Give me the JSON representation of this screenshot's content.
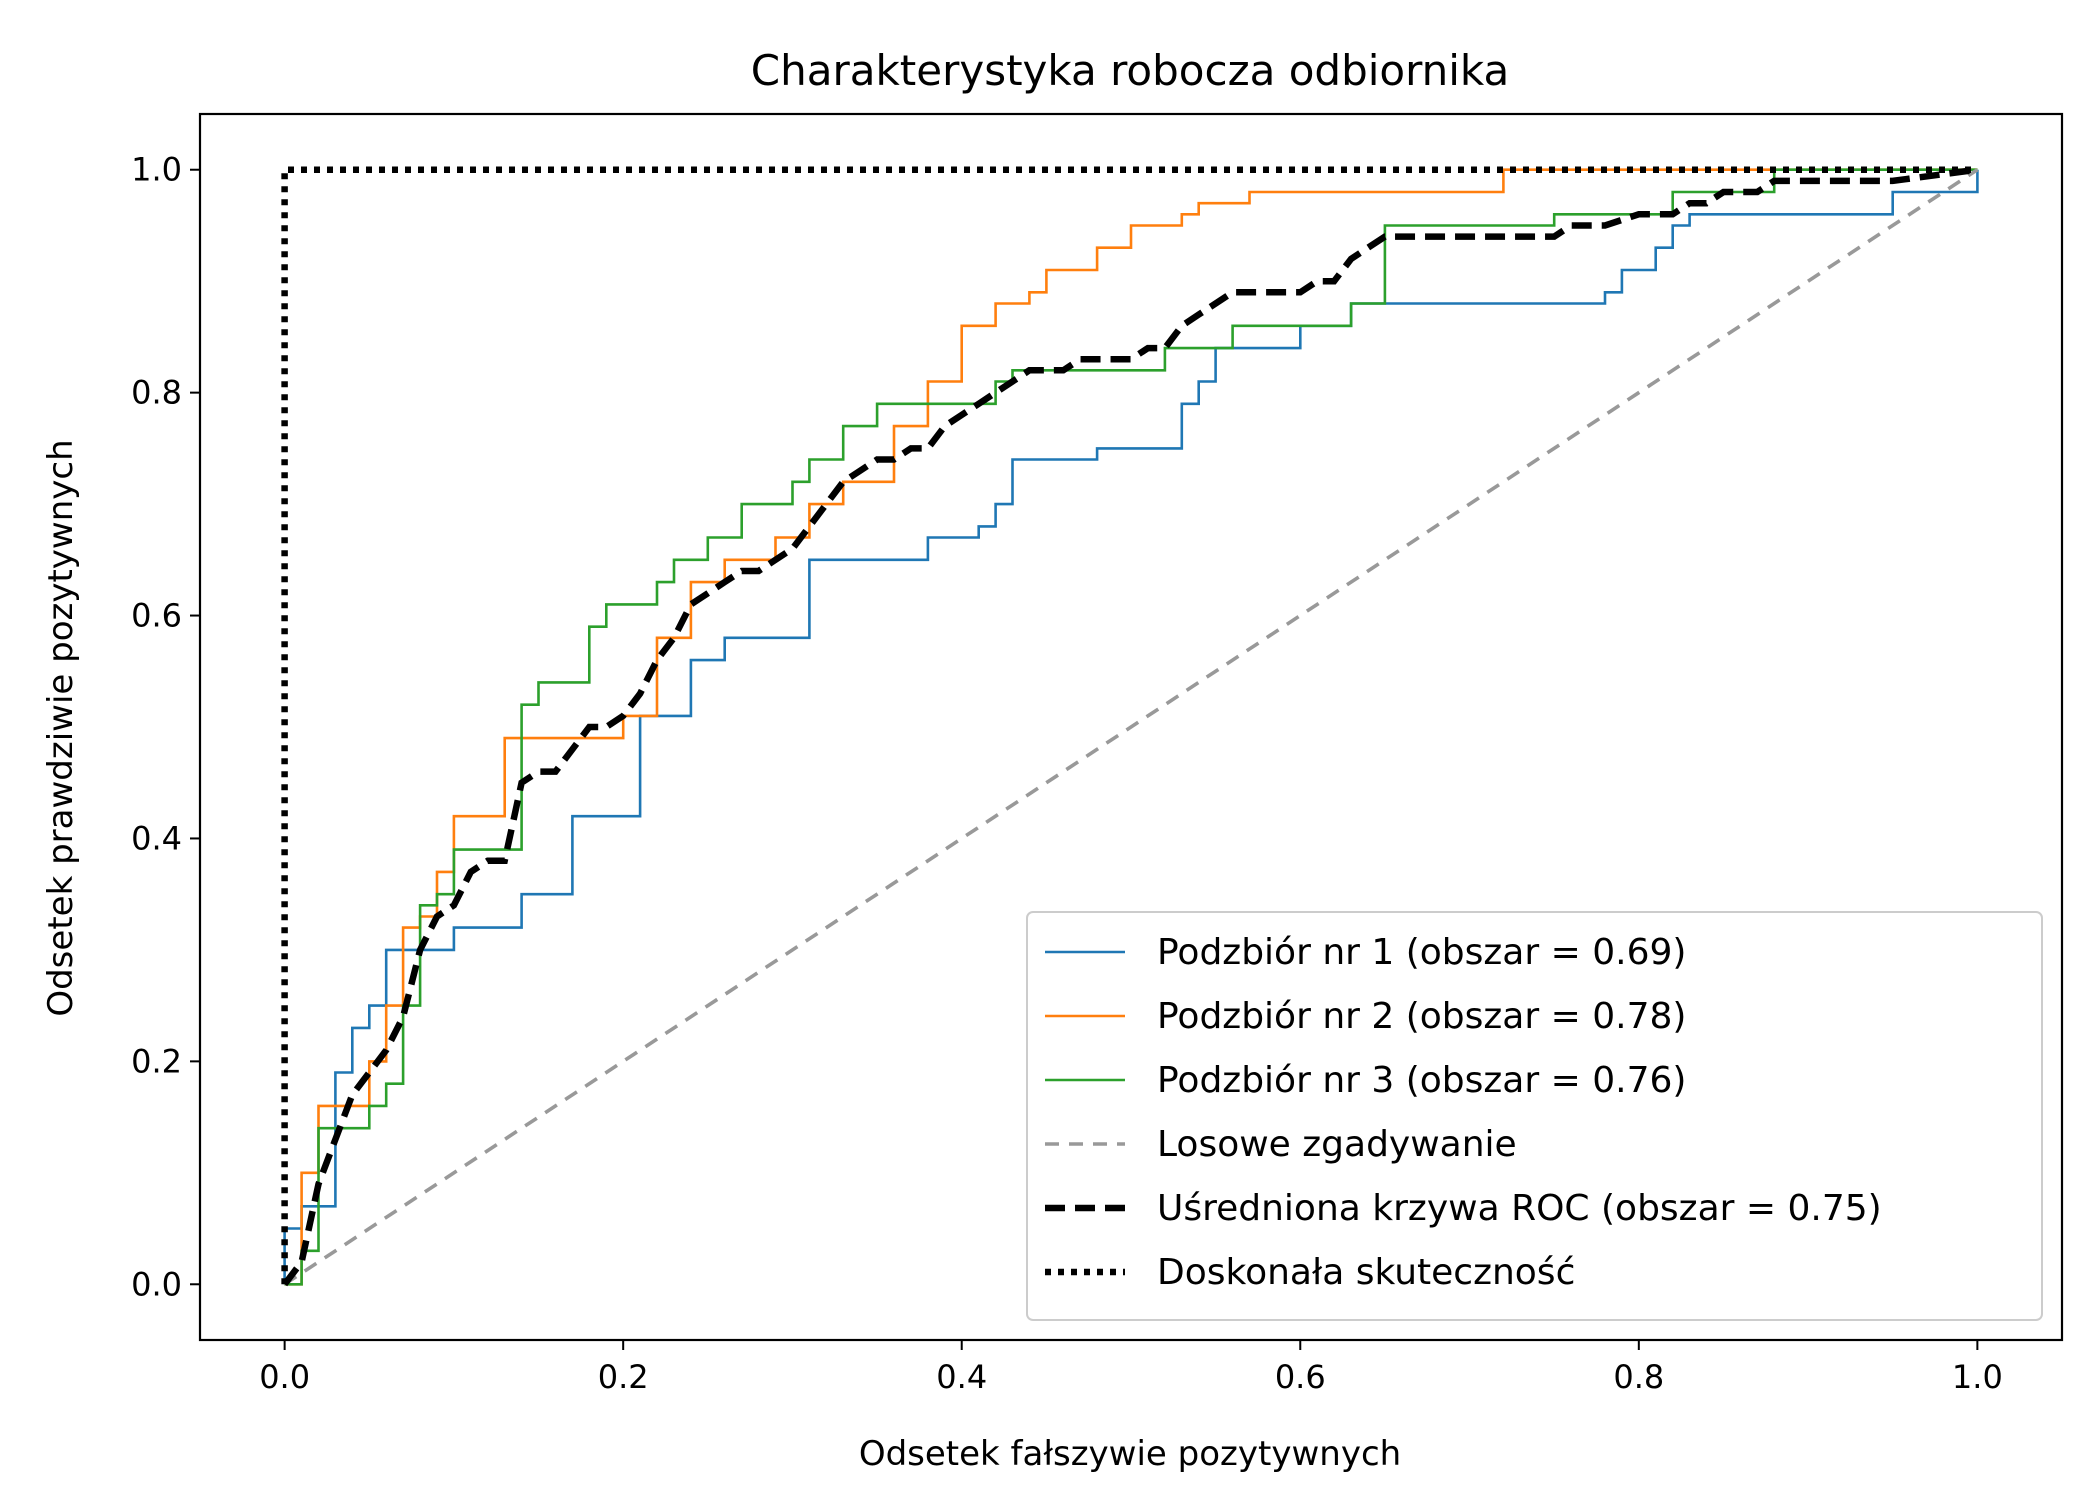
{
  "chart_data": {
    "type": "line",
    "title": "Charakterystyka robocza odbiornika",
    "xlabel": "Odsetek fałszywie pozytywnych",
    "ylabel": "Odsetek prawdziwie pozytywnych",
    "xlim": [
      -0.05,
      1.05
    ],
    "ylim": [
      -0.05,
      1.05
    ],
    "xticks": [
      0.0,
      0.2,
      0.4,
      0.6,
      0.8,
      1.0
    ],
    "yticks": [
      0.0,
      0.2,
      0.4,
      0.6,
      0.8,
      1.0
    ],
    "xtick_labels": [
      "0.0",
      "0.2",
      "0.4",
      "0.6",
      "0.8",
      "1.0"
    ],
    "ytick_labels": [
      "0.0",
      "0.2",
      "0.4",
      "0.6",
      "0.8",
      "1.0"
    ],
    "grid": false,
    "legend_position": "lower-right",
    "series": [
      {
        "name": "Podzbiór nr  1 (obszar = 0.69)",
        "color": "#1f77b4",
        "style": "solid",
        "step": true,
        "x": [
          0.0,
          0.0,
          0.01,
          0.01,
          0.03,
          0.03,
          0.04,
          0.04,
          0.05,
          0.05,
          0.06,
          0.06,
          0.07,
          0.07,
          0.08,
          0.08,
          0.1,
          0.1,
          0.14,
          0.14,
          0.17,
          0.17,
          0.21,
          0.21,
          0.24,
          0.24,
          0.26,
          0.26,
          0.31,
          0.31,
          0.38,
          0.38,
          0.41,
          0.41,
          0.42,
          0.42,
          0.43,
          0.43,
          0.48,
          0.48,
          0.53,
          0.53,
          0.54,
          0.54,
          0.55,
          0.55,
          0.6,
          0.6,
          0.63,
          0.63,
          0.78,
          0.78,
          0.79,
          0.79,
          0.81,
          0.81,
          0.82,
          0.82,
          0.83,
          0.83,
          0.95,
          0.95,
          1.0,
          1.0
        ],
        "y": [
          0.0,
          0.05,
          0.05,
          0.07,
          0.07,
          0.19,
          0.19,
          0.23,
          0.23,
          0.25,
          0.25,
          0.3,
          0.3,
          0.3,
          0.3,
          0.3,
          0.3,
          0.32,
          0.32,
          0.35,
          0.35,
          0.42,
          0.42,
          0.51,
          0.51,
          0.56,
          0.56,
          0.58,
          0.58,
          0.65,
          0.65,
          0.67,
          0.67,
          0.68,
          0.68,
          0.7,
          0.7,
          0.74,
          0.74,
          0.75,
          0.75,
          0.79,
          0.79,
          0.81,
          0.81,
          0.84,
          0.84,
          0.86,
          0.86,
          0.88,
          0.88,
          0.89,
          0.89,
          0.91,
          0.91,
          0.93,
          0.93,
          0.95,
          0.95,
          0.96,
          0.96,
          0.98,
          0.98,
          1.0
        ]
      },
      {
        "name": "Podzbiór nr  2 (obszar = 0.78)",
        "color": "#ff7f0e",
        "style": "solid",
        "step": true,
        "x": [
          0.0,
          0.01,
          0.01,
          0.02,
          0.02,
          0.03,
          0.03,
          0.05,
          0.05,
          0.06,
          0.06,
          0.07,
          0.07,
          0.08,
          0.08,
          0.09,
          0.09,
          0.1,
          0.1,
          0.13,
          0.13,
          0.14,
          0.14,
          0.2,
          0.2,
          0.22,
          0.22,
          0.24,
          0.24,
          0.26,
          0.26,
          0.29,
          0.29,
          0.31,
          0.31,
          0.33,
          0.33,
          0.36,
          0.36,
          0.38,
          0.38,
          0.4,
          0.4,
          0.42,
          0.42,
          0.44,
          0.44,
          0.45,
          0.45,
          0.46,
          0.46,
          0.48,
          0.48,
          0.5,
          0.5,
          0.53,
          0.53,
          0.54,
          0.54,
          0.57,
          0.57,
          0.6,
          0.6,
          0.72,
          0.72,
          0.88,
          0.88,
          1.0
        ],
        "y": [
          0.0,
          0.0,
          0.1,
          0.1,
          0.16,
          0.16,
          0.16,
          0.16,
          0.2,
          0.2,
          0.25,
          0.25,
          0.32,
          0.32,
          0.33,
          0.33,
          0.37,
          0.37,
          0.42,
          0.42,
          0.49,
          0.49,
          0.49,
          0.49,
          0.51,
          0.51,
          0.58,
          0.58,
          0.63,
          0.63,
          0.65,
          0.65,
          0.67,
          0.67,
          0.7,
          0.7,
          0.72,
          0.72,
          0.77,
          0.77,
          0.81,
          0.81,
          0.86,
          0.86,
          0.88,
          0.88,
          0.89,
          0.89,
          0.91,
          0.91,
          0.91,
          0.91,
          0.93,
          0.93,
          0.95,
          0.95,
          0.96,
          0.96,
          0.97,
          0.97,
          0.98,
          0.98,
          0.98,
          0.98,
          1.0,
          1.0,
          1.0,
          1.0
        ]
      },
      {
        "name": "Podzbiór nr  3 (obszar = 0.76)",
        "color": "#2ca02c",
        "style": "solid",
        "step": true,
        "x": [
          0.0,
          0.0,
          0.01,
          0.01,
          0.02,
          0.02,
          0.03,
          0.03,
          0.05,
          0.05,
          0.06,
          0.06,
          0.07,
          0.07,
          0.08,
          0.08,
          0.09,
          0.09,
          0.1,
          0.1,
          0.11,
          0.11,
          0.14,
          0.14,
          0.15,
          0.15,
          0.18,
          0.18,
          0.19,
          0.19,
          0.22,
          0.22,
          0.23,
          0.23,
          0.24,
          0.24,
          0.25,
          0.25,
          0.27,
          0.27,
          0.3,
          0.3,
          0.31,
          0.31,
          0.33,
          0.33,
          0.35,
          0.35,
          0.37,
          0.37,
          0.42,
          0.42,
          0.43,
          0.43,
          0.52,
          0.52,
          0.56,
          0.56,
          0.62,
          0.62,
          0.63,
          0.63,
          0.65,
          0.65,
          0.75,
          0.75,
          0.82,
          0.82,
          0.86,
          0.86,
          0.88,
          0.88,
          1.0
        ],
        "y": [
          0.0,
          0.0,
          0.0,
          0.03,
          0.03,
          0.14,
          0.14,
          0.14,
          0.14,
          0.16,
          0.16,
          0.18,
          0.18,
          0.25,
          0.25,
          0.34,
          0.34,
          0.35,
          0.35,
          0.39,
          0.39,
          0.39,
          0.39,
          0.52,
          0.52,
          0.54,
          0.54,
          0.59,
          0.59,
          0.61,
          0.61,
          0.63,
          0.63,
          0.65,
          0.65,
          0.65,
          0.65,
          0.67,
          0.67,
          0.7,
          0.7,
          0.72,
          0.72,
          0.74,
          0.74,
          0.77,
          0.77,
          0.79,
          0.79,
          0.79,
          0.79,
          0.81,
          0.81,
          0.82,
          0.82,
          0.84,
          0.84,
          0.86,
          0.86,
          0.86,
          0.86,
          0.88,
          0.88,
          0.95,
          0.95,
          0.96,
          0.96,
          0.98,
          0.98,
          0.98,
          0.98,
          1.0,
          1.0
        ]
      },
      {
        "name": "Losowe zgadywanie",
        "color": "#999999",
        "style": "dashed",
        "x": [
          0.0,
          1.0
        ],
        "y": [
          0.0,
          1.0
        ]
      },
      {
        "name": "Uśredniona krzywa ROC  (obszar = 0.75)",
        "color": "#000000",
        "style": "dashed-thick",
        "x": [
          0.0,
          0.01,
          0.02,
          0.03,
          0.04,
          0.05,
          0.06,
          0.07,
          0.08,
          0.09,
          0.1,
          0.11,
          0.12,
          0.13,
          0.14,
          0.15,
          0.16,
          0.17,
          0.18,
          0.19,
          0.2,
          0.21,
          0.22,
          0.23,
          0.24,
          0.25,
          0.26,
          0.27,
          0.28,
          0.29,
          0.3,
          0.31,
          0.32,
          0.33,
          0.34,
          0.35,
          0.36,
          0.37,
          0.38,
          0.39,
          0.4,
          0.41,
          0.42,
          0.43,
          0.44,
          0.45,
          0.46,
          0.47,
          0.48,
          0.49,
          0.5,
          0.51,
          0.52,
          0.53,
          0.54,
          0.55,
          0.56,
          0.57,
          0.58,
          0.59,
          0.6,
          0.61,
          0.62,
          0.63,
          0.64,
          0.65,
          0.7,
          0.74,
          0.75,
          0.76,
          0.78,
          0.8,
          0.82,
          0.83,
          0.84,
          0.85,
          0.87,
          0.88,
          0.9,
          0.95,
          1.0
        ],
        "y": [
          0.0,
          0.02,
          0.09,
          0.13,
          0.17,
          0.19,
          0.21,
          0.24,
          0.3,
          0.33,
          0.34,
          0.37,
          0.38,
          0.38,
          0.45,
          0.46,
          0.46,
          0.48,
          0.5,
          0.5,
          0.51,
          0.53,
          0.56,
          0.58,
          0.61,
          0.62,
          0.63,
          0.64,
          0.64,
          0.65,
          0.66,
          0.68,
          0.7,
          0.72,
          0.73,
          0.74,
          0.74,
          0.75,
          0.75,
          0.77,
          0.78,
          0.79,
          0.8,
          0.81,
          0.82,
          0.82,
          0.82,
          0.83,
          0.83,
          0.83,
          0.83,
          0.84,
          0.84,
          0.86,
          0.87,
          0.88,
          0.89,
          0.89,
          0.89,
          0.89,
          0.89,
          0.9,
          0.9,
          0.92,
          0.93,
          0.94,
          0.94,
          0.94,
          0.94,
          0.95,
          0.95,
          0.96,
          0.96,
          0.97,
          0.97,
          0.98,
          0.98,
          0.99,
          0.99,
          0.99,
          1.0
        ]
      },
      {
        "name": "Doskonała skuteczność",
        "color": "#000000",
        "style": "dotted",
        "x": [
          0.0,
          0.0,
          1.0
        ],
        "y": [
          0.0,
          1.0,
          1.0
        ]
      }
    ]
  }
}
